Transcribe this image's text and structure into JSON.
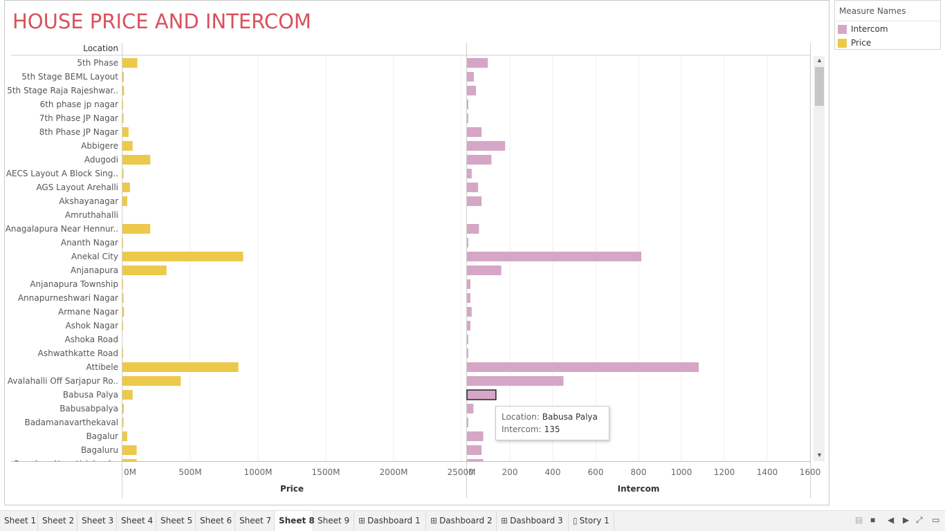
{
  "title": "HOUSE PRICE AND INTERCOM",
  "colors": {
    "price": "#ecc94b",
    "intercom": "#d5a6c6",
    "title": "#d9515b"
  },
  "legend": {
    "title": "Measure Names",
    "items": [
      {
        "label": "Intercom",
        "color": "#d5a6c6"
      },
      {
        "label": "Price",
        "color": "#ecc94b"
      }
    ]
  },
  "chart_data": {
    "type": "bar",
    "orientation": "horizontal",
    "row_header": "Location",
    "categories": [
      "5th Phase",
      "5th Stage BEML Layout",
      "5th Stage Raja Rajeshwar..",
      "6th phase jp nagar",
      "7th Phase JP Nagar",
      "8th Phase JP Nagar",
      "Abbigere",
      "Adugodi",
      "AECS Layout A Block Sing..",
      "AGS Layout Arehalli",
      "Akshayanagar",
      "Amruthahalli",
      "Anagalapura Near Hennur..",
      "Ananth Nagar",
      "Anekal City",
      "Anjanapura",
      "Anjanapura Township",
      "Annapurneshwari Nagar",
      "Armane Nagar",
      "Ashok Nagar",
      "Ashoka Road",
      "Ashwathkatte Road",
      "Attibele",
      "Avalahalli Off Sarjapur Ro..",
      "Babusa Palya",
      "Babusabpalya",
      "Badamanavarthekaval",
      "Bagalur",
      "Bagaluru",
      "Banaluru Near Yelahanka"
    ],
    "series": [
      {
        "name": "Price",
        "xlabel": "Price",
        "xlim": [
          0,
          2500
        ],
        "ticks": [
          "0M",
          "500M",
          "1000M",
          "1500M",
          "2000M",
          "2500M"
        ],
        "values": [
          110,
          10,
          12,
          3,
          8,
          45,
          75,
          205,
          8,
          55,
          35,
          0,
          205,
          2,
          890,
          325,
          3,
          8,
          12,
          3,
          0,
          3,
          855,
          430,
          75,
          10,
          8,
          35,
          105,
          105
        ]
      },
      {
        "name": "Intercom",
        "xlabel": "Intercom",
        "xlim": [
          0,
          1600
        ],
        "ticks": [
          "0",
          "200",
          "400",
          "600",
          "800",
          "1000",
          "1200",
          "1400",
          "1600"
        ],
        "values": [
          97,
          32,
          42,
          6,
          6,
          68,
          178,
          114,
          22,
          52,
          68,
          0,
          56,
          6,
          813,
          160,
          16,
          16,
          22,
          16,
          6,
          6,
          1081,
          450,
          135,
          30,
          6,
          76,
          68,
          76
        ]
      }
    ],
    "highlighted": "Babusa Palya",
    "grid": true
  },
  "tooltip": {
    "location_label": "Location:",
    "location_value": "Babusa Palya",
    "measure_label": "Intercom:",
    "measure_value": "135"
  },
  "tabs": [
    {
      "label": "Sheet 1",
      "icon": ""
    },
    {
      "label": "Sheet 2",
      "icon": ""
    },
    {
      "label": "Sheet 3",
      "icon": ""
    },
    {
      "label": "Sheet 4",
      "icon": ""
    },
    {
      "label": "Sheet 5",
      "icon": ""
    },
    {
      "label": "Sheet 6",
      "icon": ""
    },
    {
      "label": "Sheet 7",
      "icon": ""
    },
    {
      "label": "Sheet 8",
      "icon": "",
      "active": true
    },
    {
      "label": "Sheet 9",
      "icon": ""
    },
    {
      "label": "Dashboard 1",
      "icon": "dashboard-icon"
    },
    {
      "label": "Dashboard 2",
      "icon": "dashboard-icon"
    },
    {
      "label": "Dashboard 3",
      "icon": "dashboard-icon"
    },
    {
      "label": "Story 1",
      "icon": "story-icon"
    }
  ]
}
